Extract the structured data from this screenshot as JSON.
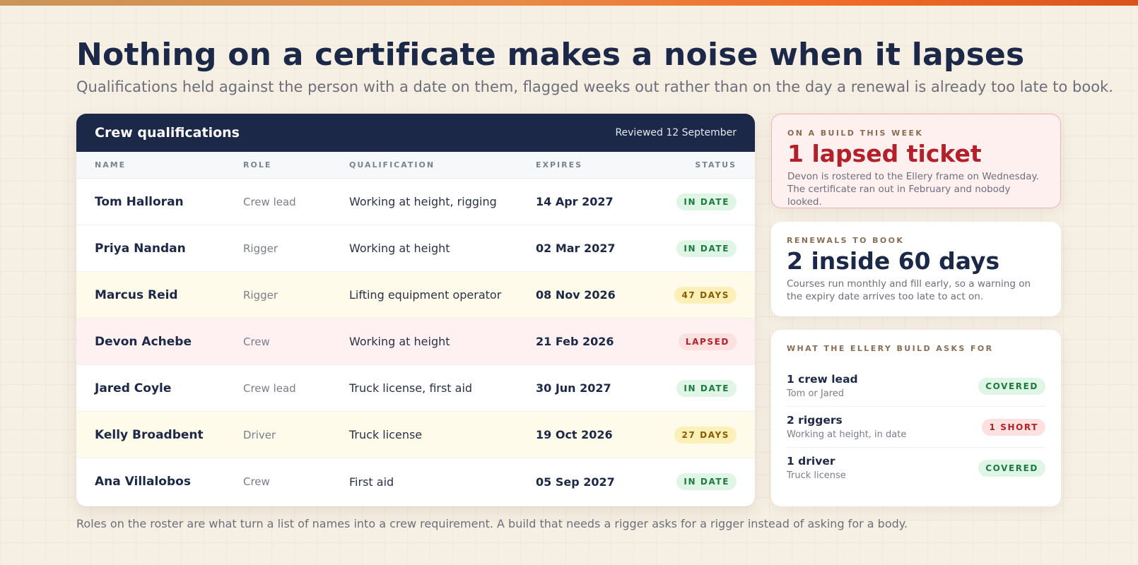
{
  "heading": "Nothing on a certificate makes a noise when it lapses",
  "subheading": "Qualifications held against the person with a date on them, flagged weeks out rather than on the day a renewal is already too late to book.",
  "table": {
    "title": "Crew qualifications",
    "reviewed": "Reviewed 12 September",
    "columns": {
      "name": "NAME",
      "role": "ROLE",
      "qualification": "QUALIFICATION",
      "expires": "EXPIRES",
      "status": "STATUS"
    },
    "rows": [
      {
        "name": "Tom Halloran",
        "role": "Crew lead",
        "qualification": "Working at height, rigging",
        "expires": "14 Apr 2027",
        "status": "IN DATE"
      },
      {
        "name": "Priya Nandan",
        "role": "Rigger",
        "qualification": "Working at height",
        "expires": "02 Mar 2027",
        "status": "IN DATE"
      },
      {
        "name": "Marcus Reid",
        "role": "Rigger",
        "qualification": "Lifting equipment operator",
        "expires": "08 Nov 2026",
        "status": "47 DAYS"
      },
      {
        "name": "Devon Achebe",
        "role": "Crew",
        "qualification": "Working at height",
        "expires": "21 Feb 2026",
        "status": "LAPSED"
      },
      {
        "name": "Jared Coyle",
        "role": "Crew lead",
        "qualification": "Truck license, first aid",
        "expires": "30 Jun 2027",
        "status": "IN DATE"
      },
      {
        "name": "Kelly Broadbent",
        "role": "Driver",
        "qualification": "Truck license",
        "expires": "19 Oct 2026",
        "status": "27 DAYS"
      },
      {
        "name": "Ana Villalobos",
        "role": "Crew",
        "qualification": "First aid",
        "expires": "05 Sep 2027",
        "status": "IN DATE"
      }
    ]
  },
  "alert": {
    "eyebrow": "ON A BUILD THIS WEEK",
    "headline": "1 lapsed ticket",
    "description": "Devon is rostered to the Ellery frame on Wednesday. The certificate ran out in February and nobody looked."
  },
  "renewals": {
    "eyebrow": "RENEWALS TO BOOK",
    "headline": "2 inside 60 days",
    "description": "Courses run monthly and fill early, so a warning on the expiry date arrives too late to act on."
  },
  "requirements": {
    "eyebrow": "WHAT THE ELLERY BUILD ASKS FOR",
    "items": [
      {
        "title": "1 crew lead",
        "sub": "Tom or Jared",
        "status": "COVERED"
      },
      {
        "title": "2 riggers",
        "sub": "Working at height, in date",
        "status": "1 SHORT"
      },
      {
        "title": "1 driver",
        "sub": "Truck license",
        "status": "COVERED"
      }
    ]
  },
  "footer": "Roles on the roster are what turn a list of names into a crew requirement. A build that needs a rigger asks for a rigger instead of asking for a body.",
  "colors": {
    "navy": "#1c2847",
    "accent": "#f06a25",
    "in_date": "#1d7a3f",
    "warning": "#8a5a00",
    "lapsed": "#b3202a"
  }
}
